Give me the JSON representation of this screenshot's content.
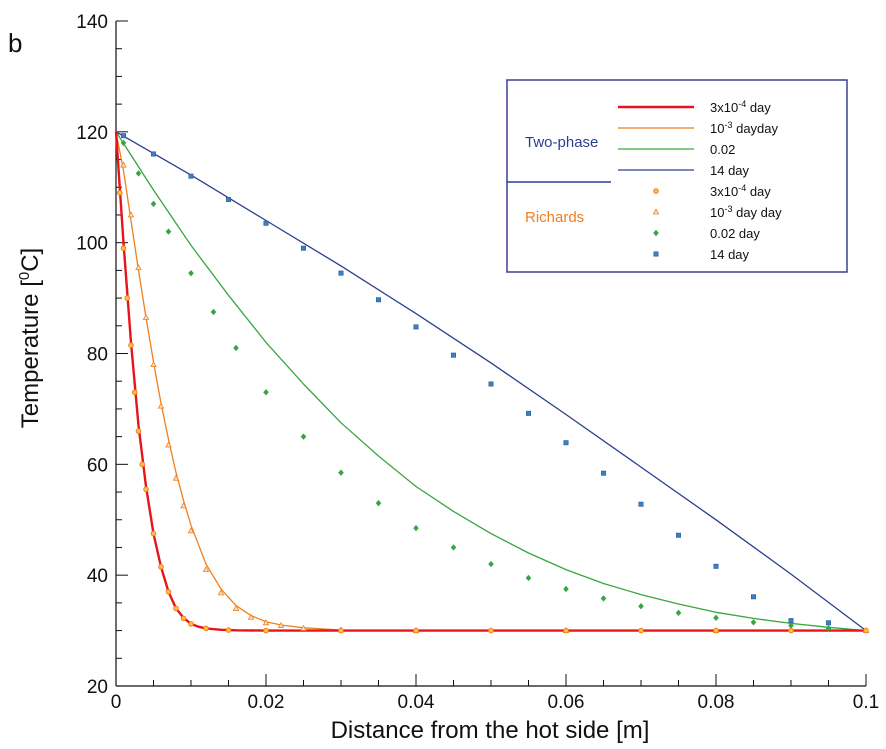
{
  "chart_data": {
    "type": "line",
    "panel_label": "b",
    "xlabel": "Distance from the hot side [m]",
    "ylabel_parts": {
      "main": "Temperature [",
      "sup": "0",
      "tail": "C]"
    },
    "xlim": [
      0,
      0.1
    ],
    "ylim": [
      20,
      140
    ],
    "x_ticks": [
      "0",
      "0.02",
      "0.04",
      "0.06",
      "0.08",
      "0.1"
    ],
    "y_ticks": [
      "20",
      "40",
      "60",
      "80",
      "100",
      "120",
      "140"
    ],
    "legend": {
      "group_two_phase": "Two-phase",
      "group_richards": "Richards",
      "placement": "top-right",
      "entries": [
        {
          "base": "3x10",
          "sup": "-4",
          "tail": " day"
        },
        {
          "base": "10",
          "sup": "-3",
          "tail": " dayday"
        },
        {
          "base": "0.02",
          "sup": "",
          "tail": ""
        },
        {
          "base": "14 day",
          "sup": "",
          "tail": ""
        },
        {
          "base": "3x10",
          "sup": "-4",
          "tail": " day"
        },
        {
          "base": "10",
          "sup": "-3",
          "tail": " day day"
        },
        {
          "base": "0.02 day",
          "sup": "",
          "tail": ""
        },
        {
          "base": "14 day",
          "sup": "",
          "tail": ""
        }
      ]
    },
    "colors": {
      "red": "#e8141b",
      "orange": "#f07f1e",
      "green": "#37a640",
      "blue": "#2c3e8f",
      "marker_blue": "#3b7fc4",
      "legend_box": "#3b3f96",
      "group_two_phase": "#2c3e8f",
      "group_richards": "#f07f1e"
    },
    "series": [
      {
        "name": "3x10^-4 day",
        "model": "Two-phase",
        "style": "line",
        "color": "red",
        "x": [
          0,
          0.001,
          0.002,
          0.003,
          0.004,
          0.005,
          0.006,
          0.007,
          0.008,
          0.009,
          0.01,
          0.011,
          0.012,
          0.014,
          0.016,
          0.02,
          0.03,
          0.05,
          0.1
        ],
        "y": [
          120,
          100,
          82,
          67,
          56,
          47.5,
          41.5,
          37,
          34,
          32.3,
          31.2,
          30.7,
          30.4,
          30.15,
          30.05,
          30,
          30,
          30,
          30
        ]
      },
      {
        "name": "10^-3 day",
        "model": "Two-phase",
        "style": "line",
        "color": "orange",
        "x": [
          0,
          0.001,
          0.002,
          0.003,
          0.004,
          0.005,
          0.006,
          0.007,
          0.008,
          0.009,
          0.01,
          0.012,
          0.014,
          0.016,
          0.018,
          0.02,
          0.022,
          0.025,
          0.03,
          0.04,
          0.1
        ],
        "y": [
          120,
          113,
          104,
          95,
          86.5,
          78.5,
          71,
          64.5,
          58.5,
          53.5,
          49,
          42,
          37.5,
          34.5,
          32.7,
          31.6,
          31,
          30.5,
          30.1,
          30,
          30
        ]
      },
      {
        "name": "0.02 day",
        "model": "Two-phase",
        "style": "line",
        "color": "green",
        "x": [
          0,
          0.005,
          0.01,
          0.015,
          0.02,
          0.025,
          0.03,
          0.035,
          0.04,
          0.045,
          0.05,
          0.055,
          0.06,
          0.065,
          0.07,
          0.075,
          0.08,
          0.085,
          0.09,
          0.095,
          0.1
        ],
        "y": [
          120,
          109.5,
          99.5,
          90.5,
          82,
          74.5,
          67.5,
          61.5,
          56,
          51.5,
          47.5,
          44,
          41,
          38.5,
          36.5,
          34.8,
          33.3,
          32.2,
          31.3,
          30.6,
          30
        ]
      },
      {
        "name": "14 day",
        "model": "Two-phase",
        "style": "line",
        "color": "blue",
        "x": [
          0,
          0.01,
          0.02,
          0.03,
          0.04,
          0.05,
          0.06,
          0.07,
          0.08,
          0.09,
          0.1
        ],
        "y": [
          120,
          112.2,
          104,
          95.8,
          87.2,
          78.3,
          69,
          59.5,
          50,
          40.2,
          30
        ]
      },
      {
        "name": "3x10^-4 day",
        "model": "Richards",
        "style": "circle",
        "color": "orange",
        "x": [
          0.0005,
          0.001,
          0.0015,
          0.002,
          0.0025,
          0.003,
          0.0035,
          0.004,
          0.005,
          0.006,
          0.007,
          0.008,
          0.009,
          0.01,
          0.012,
          0.015,
          0.02,
          0.03,
          0.04,
          0.05,
          0.06,
          0.07,
          0.08,
          0.09,
          0.1
        ],
        "y": [
          109,
          99,
          90,
          81.5,
          73,
          66,
          60,
          55.5,
          47.5,
          41.5,
          37,
          34,
          32.2,
          31.2,
          30.4,
          30.1,
          30,
          30,
          30,
          30,
          30,
          30,
          30,
          30,
          30
        ]
      },
      {
        "name": "10^-3 day day",
        "model": "Richards",
        "style": "triangle",
        "color": "orange",
        "x": [
          0.001,
          0.002,
          0.003,
          0.004,
          0.005,
          0.006,
          0.007,
          0.008,
          0.009,
          0.01,
          0.012,
          0.014,
          0.016,
          0.018,
          0.02,
          0.022,
          0.025,
          0.03,
          0.04,
          0.06,
          0.08,
          0.1
        ],
        "y": [
          114,
          105,
          95.5,
          86.5,
          78,
          70.5,
          63.5,
          57.5,
          52.5,
          48,
          41,
          36.8,
          34,
          32.4,
          31.4,
          30.9,
          30.4,
          30.1,
          30,
          30,
          30,
          30
        ]
      },
      {
        "name": "0.02 day",
        "model": "Richards",
        "style": "diamond",
        "color": "green",
        "x": [
          0.001,
          0.003,
          0.005,
          0.007,
          0.01,
          0.013,
          0.016,
          0.02,
          0.025,
          0.03,
          0.035,
          0.04,
          0.045,
          0.05,
          0.055,
          0.06,
          0.065,
          0.07,
          0.075,
          0.08,
          0.085,
          0.09,
          0.095
        ],
        "y": [
          118,
          112.5,
          107,
          102,
          94.5,
          87.5,
          81,
          73,
          65,
          58.5,
          53,
          48.5,
          45,
          42,
          39.5,
          37.5,
          35.8,
          34.4,
          33.2,
          32.3,
          31.5,
          30.9,
          30.4
        ]
      },
      {
        "name": "14 day",
        "model": "Richards",
        "style": "square",
        "color": "marker_blue",
        "x": [
          0.001,
          0.005,
          0.01,
          0.015,
          0.02,
          0.025,
          0.03,
          0.035,
          0.04,
          0.045,
          0.05,
          0.055,
          0.06,
          0.065,
          0.07,
          0.075,
          0.08,
          0.085,
          0.09,
          0.095
        ],
        "y": [
          119.3,
          116,
          112,
          107.8,
          103.5,
          99,
          94.5,
          89.7,
          84.8,
          79.7,
          74.5,
          69.2,
          63.9,
          58.4,
          52.8,
          47.2,
          41.6,
          36.1,
          31.8,
          31.4
        ]
      }
    ]
  }
}
